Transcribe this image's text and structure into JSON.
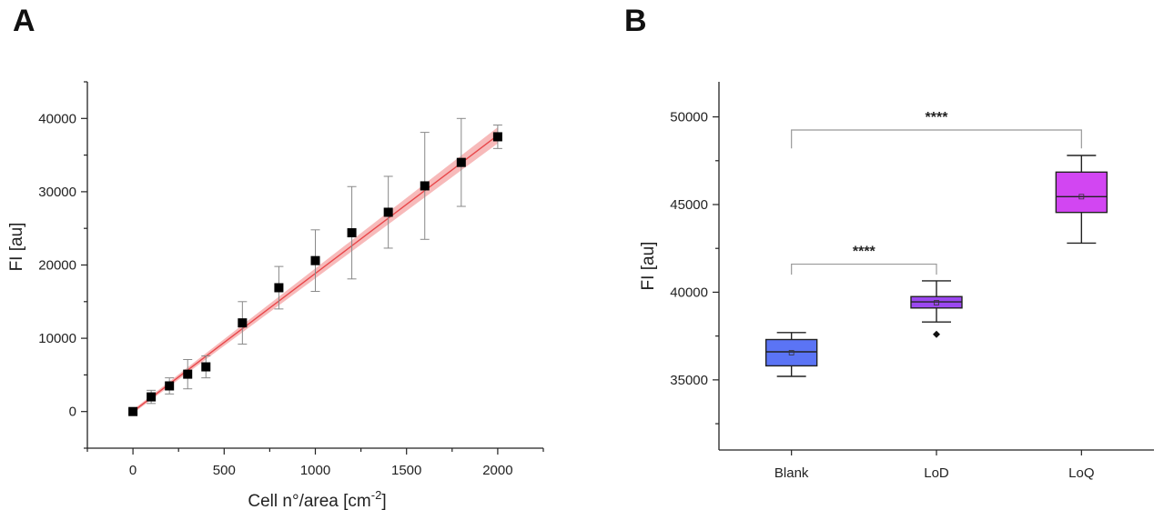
{
  "panels": {
    "a_label": "A",
    "b_label": "B"
  },
  "chart_data": [
    {
      "type": "scatter",
      "panel": "A",
      "xlabel_main": "Cell n°/area [cm",
      "xlabel_sup": "-2",
      "xlabel_end": "]",
      "ylabel": "FI [au]",
      "xlim": [
        -250,
        2250
      ],
      "ylim": [
        -5000,
        45000
      ],
      "xticks": [
        0,
        500,
        1000,
        1500,
        2000
      ],
      "yticks": [
        0,
        10000,
        20000,
        30000,
        40000
      ],
      "points": [
        {
          "x": 0,
          "y": 0,
          "err": 300
        },
        {
          "x": 100,
          "y": 2000,
          "err": 900
        },
        {
          "x": 200,
          "y": 3500,
          "err": 1100
        },
        {
          "x": 300,
          "y": 5100,
          "err": 2000
        },
        {
          "x": 400,
          "y": 6100,
          "err": 1500
        },
        {
          "x": 600,
          "y": 12100,
          "err": 2900
        },
        {
          "x": 800,
          "y": 16900,
          "err": 2900
        },
        {
          "x": 1000,
          "y": 20600,
          "err": 4200
        },
        {
          "x": 1200,
          "y": 24400,
          "err": 6300
        },
        {
          "x": 1400,
          "y": 27200,
          "err": 4900
        },
        {
          "x": 1600,
          "y": 30800,
          "err": 7300
        },
        {
          "x": 1800,
          "y": 34000,
          "err": 6000
        },
        {
          "x": 2000,
          "y": 37500,
          "err": 1600
        }
      ],
      "fit": {
        "slope": 18.85,
        "intercept": 0,
        "x_range": [
          0,
          2000
        ],
        "band_at_max": 1100
      },
      "colors": {
        "marker": "#000000",
        "fit_line": "#e8474a",
        "band": "#f4a3a3",
        "errorbar": "#888888"
      }
    },
    {
      "type": "box",
      "panel": "B",
      "ylabel": "FI [au]",
      "ylim": [
        31000,
        52000
      ],
      "yticks": [
        35000,
        40000,
        45000,
        50000
      ],
      "categories": [
        "Blank",
        "LoD",
        "LoQ"
      ],
      "boxes": [
        {
          "category": "Blank",
          "whisker_low": 35200,
          "q1": 35800,
          "median": 36600,
          "mean": 36550,
          "q3": 37300,
          "whisker_high": 37700,
          "outliers": [],
          "color": "#5b74f5"
        },
        {
          "category": "LoD",
          "whisker_low": 38300,
          "q1": 39100,
          "median": 39450,
          "mean": 39400,
          "q3": 39750,
          "whisker_high": 40650,
          "outliers": [
            37600
          ],
          "color": "#9b48f0"
        },
        {
          "category": "LoQ",
          "whisker_low": 42800,
          "q1": 44550,
          "median": 45450,
          "mean": 45450,
          "q3": 46850,
          "whisker_high": 47800,
          "outliers": [],
          "color": "#d246f2"
        }
      ],
      "significance": [
        {
          "from": "Blank",
          "to": "LoD",
          "label": "****",
          "y": 41600,
          "drop_to": 41000
        },
        {
          "from": "Blank",
          "to": "LoQ",
          "label": "****",
          "y": 49250,
          "drop_to": 48200
        }
      ]
    }
  ]
}
